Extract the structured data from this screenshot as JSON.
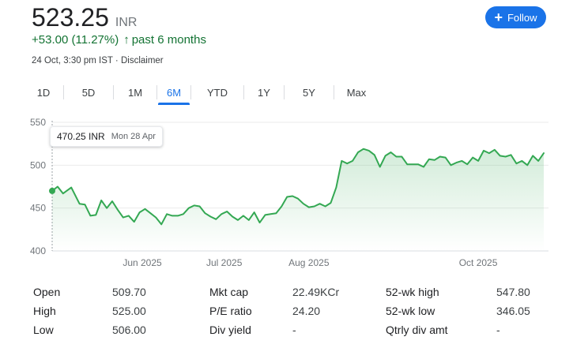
{
  "quote": {
    "price": "523.25",
    "currency": "INR",
    "change": "+53.00 (11.27%)",
    "change_arrow": "↑",
    "period_label": "past 6 months",
    "timestamp": "24 Oct, 3:30 pm IST",
    "separator": "·",
    "disclaimer": "Disclaimer"
  },
  "follow_button": {
    "icon": "plus-icon",
    "label": "Follow"
  },
  "tabs": [
    {
      "label": "1D",
      "active": false
    },
    {
      "label": "5D",
      "active": false
    },
    {
      "label": "1M",
      "active": false
    },
    {
      "label": "6M",
      "active": true
    },
    {
      "label": "YTD",
      "active": false
    },
    {
      "label": "1Y",
      "active": false
    },
    {
      "label": "5Y",
      "active": false
    },
    {
      "label": "Max",
      "active": false
    }
  ],
  "tooltip": {
    "value": "470.25 INR",
    "date": "Mon 28 Apr"
  },
  "colors": {
    "line": "#34a853",
    "accent": "#1a73e8",
    "positive": "#137333"
  },
  "chart_data": {
    "type": "area",
    "y_ticks": [
      "550",
      "500",
      "450",
      "400"
    ],
    "ylim": [
      400,
      550
    ],
    "x_ticks": [
      {
        "label": "Jun 2025",
        "x": 33
      },
      {
        "label": "Jul 2025",
        "x": 63
      },
      {
        "label": "Aug 2025",
        "x": 94
      },
      {
        "label": "Oct 2025",
        "x": 156
      }
    ],
    "xlim": [
      0,
      180
    ],
    "series": [
      {
        "points": [
          [
            0,
            470
          ],
          [
            2,
            475
          ],
          [
            4,
            467
          ],
          [
            7,
            474
          ],
          [
            10,
            455
          ],
          [
            12,
            454
          ],
          [
            14,
            441
          ],
          [
            16,
            442
          ],
          [
            18,
            459
          ],
          [
            20,
            450
          ],
          [
            22,
            458
          ],
          [
            24,
            448
          ],
          [
            26,
            439
          ],
          [
            28,
            441
          ],
          [
            30,
            434
          ],
          [
            32,
            445
          ],
          [
            34,
            449
          ],
          [
            36,
            444
          ],
          [
            38,
            439
          ],
          [
            40,
            431
          ],
          [
            42,
            443
          ],
          [
            44,
            441
          ],
          [
            46,
            441
          ],
          [
            48,
            443
          ],
          [
            50,
            450
          ],
          [
            52,
            453
          ],
          [
            54,
            452
          ],
          [
            56,
            444
          ],
          [
            58,
            440
          ],
          [
            60,
            437
          ],
          [
            62,
            443
          ],
          [
            64,
            446
          ],
          [
            66,
            440
          ],
          [
            68,
            436
          ],
          [
            70,
            441
          ],
          [
            72,
            436
          ],
          [
            74,
            445
          ],
          [
            76,
            433
          ],
          [
            78,
            442
          ],
          [
            80,
            443
          ],
          [
            82,
            444
          ],
          [
            84,
            452
          ],
          [
            86,
            463
          ],
          [
            88,
            464
          ],
          [
            90,
            461
          ],
          [
            92,
            455
          ],
          [
            94,
            451
          ],
          [
            96,
            452
          ],
          [
            98,
            455
          ],
          [
            100,
            452
          ],
          [
            102,
            456
          ],
          [
            104,
            474
          ],
          [
            106,
            505
          ],
          [
            108,
            502
          ],
          [
            110,
            505
          ],
          [
            112,
            515
          ],
          [
            114,
            519
          ],
          [
            116,
            517
          ],
          [
            118,
            512
          ],
          [
            120,
            498
          ],
          [
            122,
            511
          ],
          [
            124,
            515
          ],
          [
            126,
            510
          ],
          [
            128,
            510
          ],
          [
            130,
            501
          ],
          [
            132,
            501
          ],
          [
            134,
            501
          ],
          [
            136,
            498
          ],
          [
            138,
            507
          ],
          [
            140,
            506
          ],
          [
            142,
            510
          ],
          [
            144,
            509
          ],
          [
            146,
            500
          ],
          [
            148,
            503
          ],
          [
            150,
            505
          ],
          [
            152,
            501
          ],
          [
            154,
            509
          ],
          [
            156,
            505
          ],
          [
            158,
            517
          ],
          [
            160,
            514
          ],
          [
            162,
            518
          ],
          [
            164,
            511
          ],
          [
            166,
            510
          ],
          [
            168,
            512
          ],
          [
            170,
            502
          ],
          [
            172,
            505
          ],
          [
            174,
            500
          ],
          [
            176,
            511
          ],
          [
            178,
            505
          ],
          [
            180,
            514
          ]
        ]
      }
    ],
    "current_point": [
      0,
      470
    ],
    "grid": true
  },
  "stats": {
    "rows": [
      [
        {
          "label": "Open",
          "value": "509.70"
        },
        {
          "label": "Mkt cap",
          "value": "22.49KCr"
        },
        {
          "label": "52-wk high",
          "value": "547.80"
        }
      ],
      [
        {
          "label": "High",
          "value": "525.00"
        },
        {
          "label": "P/E ratio",
          "value": "24.20"
        },
        {
          "label": "52-wk low",
          "value": "346.05"
        }
      ],
      [
        {
          "label": "Low",
          "value": "506.00"
        },
        {
          "label": "Div yield",
          "value": "-"
        },
        {
          "label": "Qtrly div amt",
          "value": "-"
        }
      ]
    ]
  }
}
